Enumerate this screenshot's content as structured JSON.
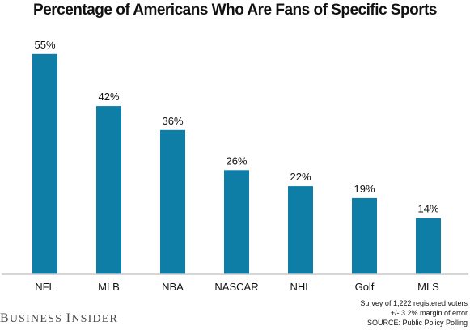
{
  "chart_data": {
    "type": "bar",
    "title": "Percentage of Americans Who Are Fans of  Specific Sports",
    "categories": [
      "NFL",
      "MLB",
      "NBA",
      "NASCAR",
      "NHL",
      "Golf",
      "MLS"
    ],
    "values": [
      55,
      42,
      36,
      26,
      22,
      19,
      14
    ],
    "data_labels": [
      "55%",
      "42%",
      "36%",
      "26%",
      "22%",
      "19%",
      "14%"
    ],
    "xlabel": "",
    "ylabel": "",
    "ylim": [
      0,
      60
    ],
    "grid": false,
    "bar_color": "#0e7ea6",
    "axis_color": "#c9c9c9"
  },
  "footer": {
    "logo": "Business Insider",
    "notes": [
      "Survey of 1,222 registered voters",
      "+/- 3.2% margin of error",
      "SOURCE: Public Policy Polling"
    ]
  }
}
